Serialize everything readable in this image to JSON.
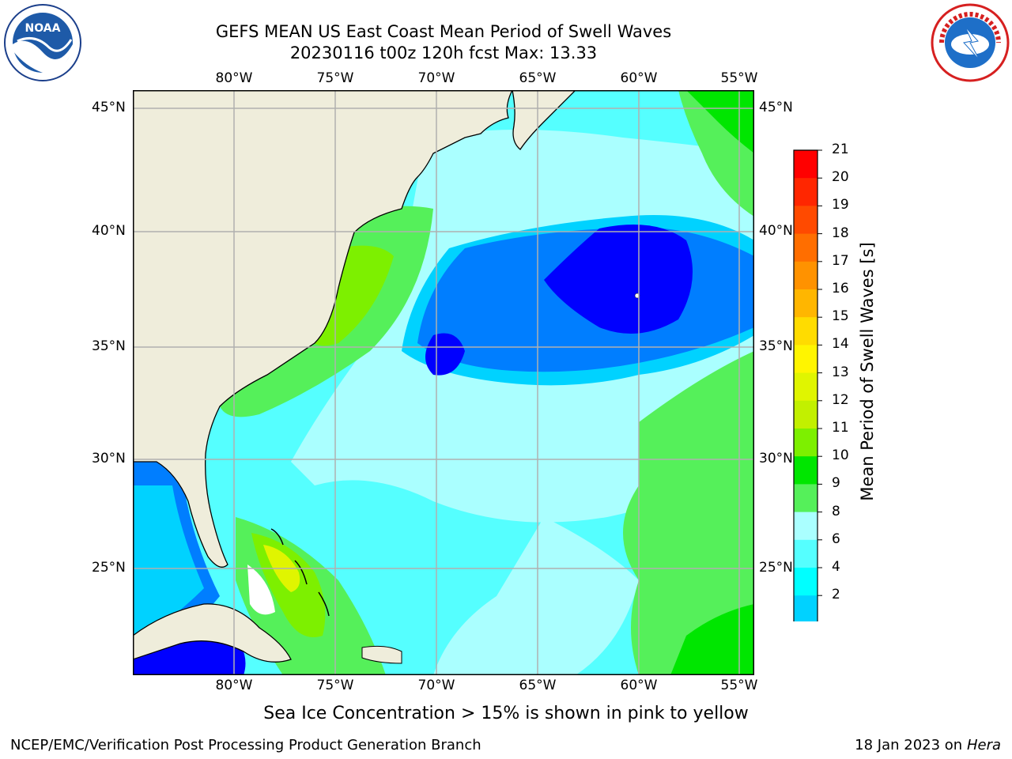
{
  "header": {
    "title_line1": "GEFS MEAN US East Coast Mean Period of Swell Waves",
    "title_line2": "20230116 t00z 120h fcst   Max: 13.33"
  },
  "logos": {
    "left": {
      "icon": "noaa-logo",
      "text": "NOAA"
    },
    "right": {
      "icon": "nws-logo",
      "text": "NATIONAL WEATHER SERVICE"
    }
  },
  "map": {
    "lon_labels": [
      "80°W",
      "75°W",
      "70°W",
      "65°W",
      "60°W",
      "55°W"
    ],
    "lat_labels": [
      "45°N",
      "40°N",
      "35°N",
      "30°N",
      "25°N"
    ],
    "colors": {
      "land": "#efeddb",
      "grid": "#b0b0b0",
      "coast": "#000000"
    }
  },
  "colorbar": {
    "title": "Mean Period of Swell Waves [s]",
    "ticks": [
      "21",
      "20",
      "19",
      "18",
      "17",
      "16",
      "15",
      "14",
      "13",
      "12",
      "11",
      "10",
      "9",
      "8",
      "6",
      "4",
      "2"
    ],
    "colors_top_to_bottom": [
      "#ff0000",
      "#ff2600",
      "#ff4a00",
      "#ff6e00",
      "#ff9200",
      "#ffb600",
      "#ffdc00",
      "#fff500",
      "#e0f500",
      "#c2f000",
      "#7df000",
      "#00e600",
      "#55f05a",
      "#aaffff",
      "#55ffff",
      "#00ffff",
      "#00d2ff",
      "#007eff"
    ],
    "extend_color": "#0000ff"
  },
  "subtitle": "Sea Ice Concentration > 15% is shown in pink to yellow",
  "footer": {
    "left": "NCEP/EMC/Verification Post Processing Product Generation Branch",
    "date": "18 Jan 2023 on ",
    "host": "Hera"
  }
}
